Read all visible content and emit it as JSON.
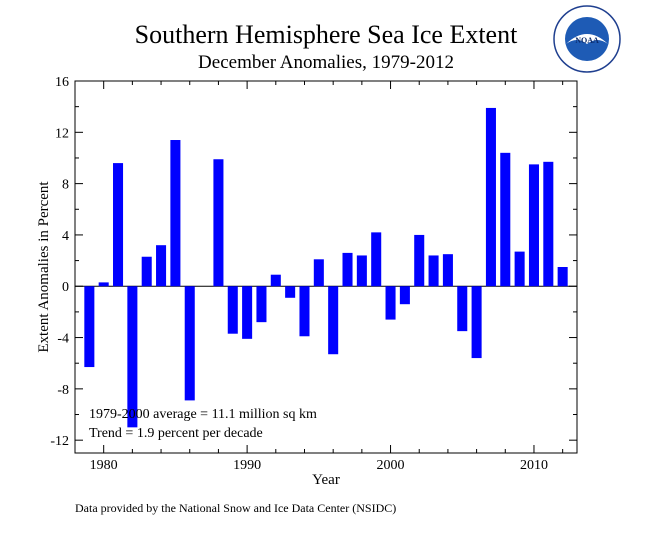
{
  "chart_data": {
    "type": "bar",
    "title": "Southern Hemisphere Sea Ice Extent",
    "subtitle": "December Anomalies, 1979-2012",
    "xlabel": "Year",
    "ylabel": "Extent Anomalies in Percent",
    "xlim": [
      1978,
      2013
    ],
    "ylim": [
      -13,
      16
    ],
    "x_ticks": [
      1980,
      1990,
      2000,
      2010
    ],
    "y_ticks": [
      16,
      12,
      8,
      4,
      0,
      -4,
      -8,
      -12
    ],
    "bar_color": "#0000ff",
    "years": [
      1979,
      1980,
      1981,
      1982,
      1983,
      1984,
      1985,
      1986,
      1987,
      1988,
      1989,
      1990,
      1991,
      1992,
      1993,
      1994,
      1995,
      1996,
      1997,
      1998,
      1999,
      2000,
      2001,
      2002,
      2003,
      2004,
      2005,
      2006,
      2007,
      2008,
      2009,
      2010,
      2011,
      2012
    ],
    "values": [
      -6.3,
      0.3,
      9.6,
      -11.0,
      2.3,
      3.2,
      11.4,
      -8.9,
      null,
      9.9,
      -3.7,
      -4.1,
      -2.8,
      0.9,
      -0.9,
      -3.9,
      2.1,
      -5.3,
      2.6,
      2.4,
      4.2,
      -2.6,
      -1.4,
      4.0,
      2.4,
      2.5,
      -3.5,
      -5.6,
      13.9,
      10.4,
      2.7,
      9.5,
      9.7,
      1.5
    ],
    "annotations": {
      "average": "1979-2000 average = 11.1 million sq km",
      "trend": "Trend =    1.9 percent per decade"
    },
    "grid": false
  },
  "logo": {
    "text": "NOAA",
    "ring_text": "NATIONAL OCEANIC AND ATMOSPHERIC ADMINISTRATION · U.S. DEPARTMENT OF COMMERCE"
  },
  "credit": "Data provided by the National Snow and Ice Data Center (NSIDC)"
}
